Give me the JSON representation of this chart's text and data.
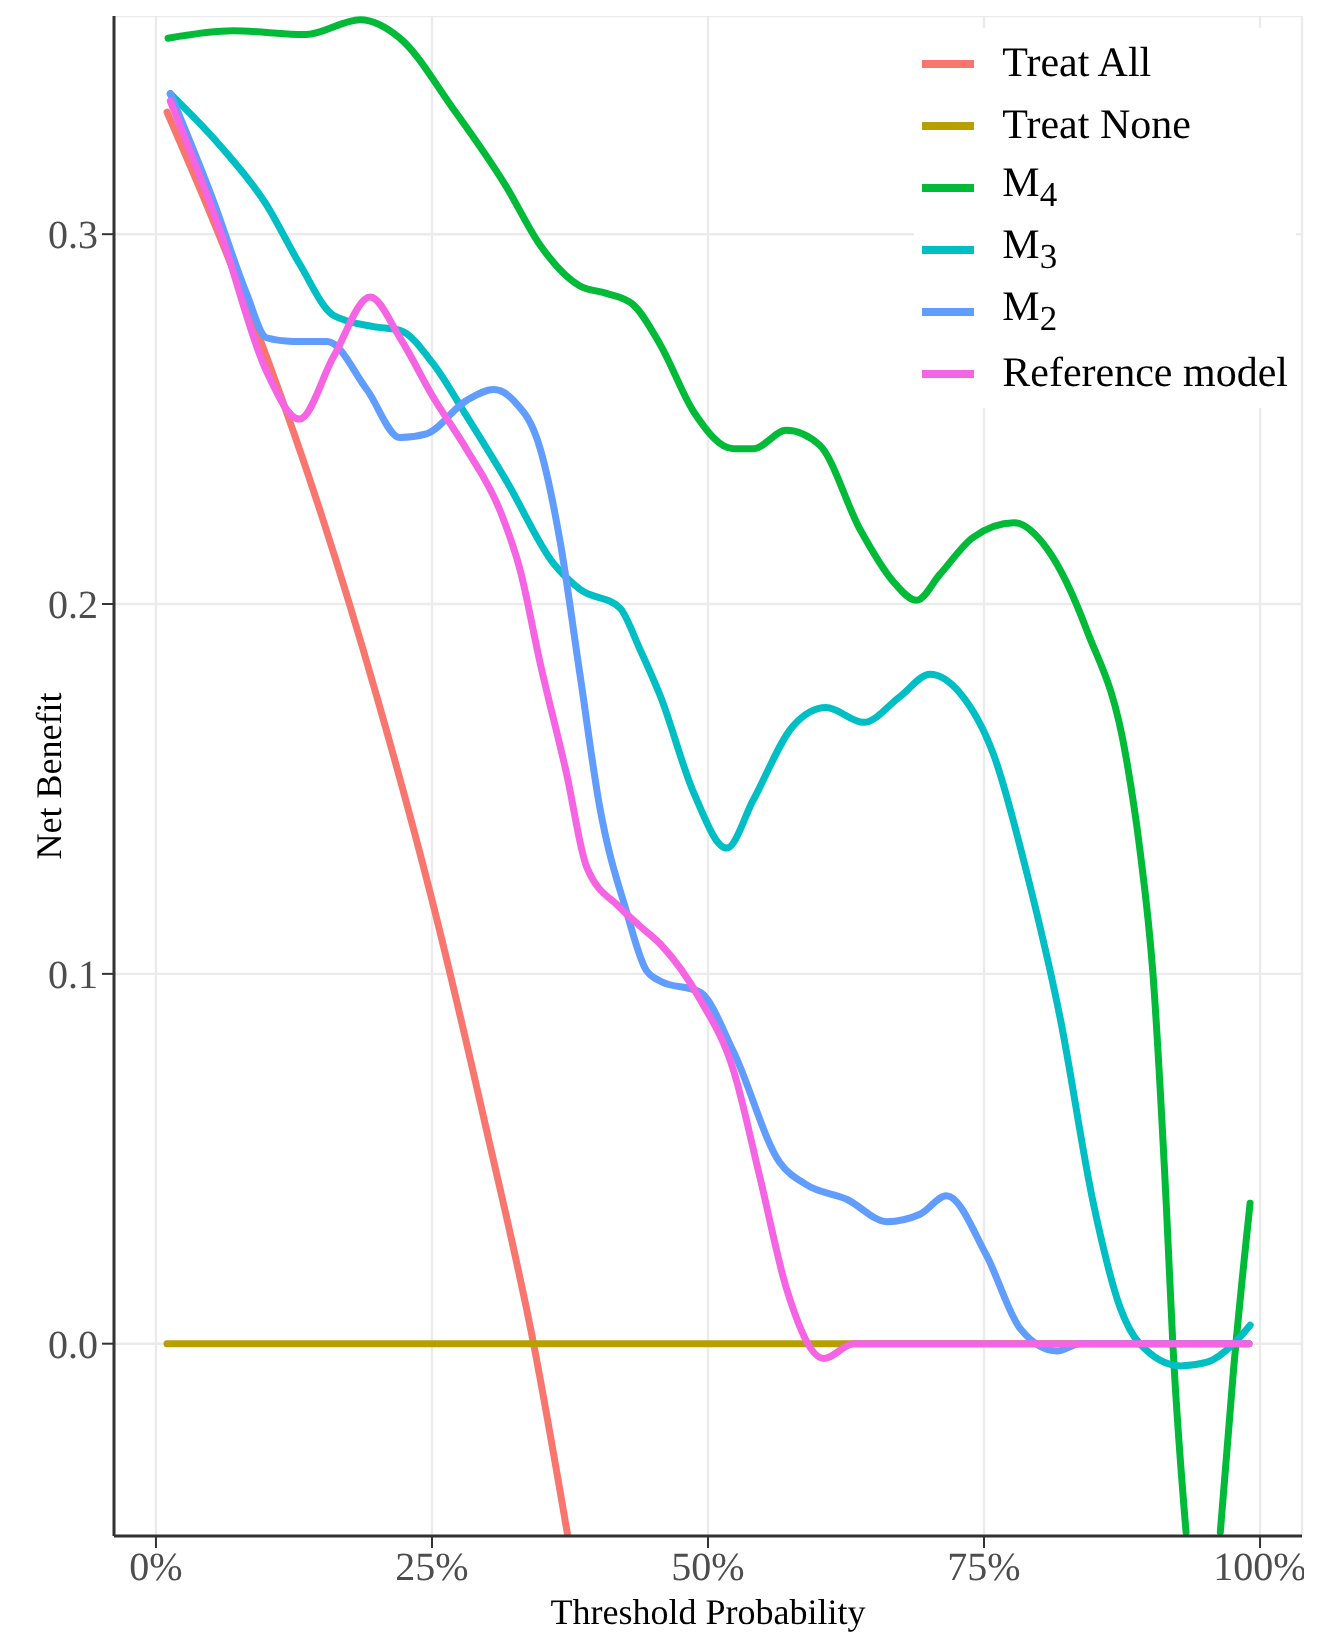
{
  "chart_data": {
    "type": "line",
    "xlabel": "Threshold Probability",
    "ylabel": "Net Benefit",
    "xlim": [
      -0.038,
      1.038
    ],
    "ylim": [
      -0.052,
      0.359
    ],
    "xticks": [
      {
        "value": 0,
        "label": "0%"
      },
      {
        "value": 0.25,
        "label": "25%"
      },
      {
        "value": 0.5,
        "label": "50%"
      },
      {
        "value": 0.75,
        "label": "75%"
      },
      {
        "value": 1,
        "label": "100%"
      }
    ],
    "yticks": [
      {
        "value": 0,
        "label": "0.0"
      },
      0.1,
      0.2,
      0.3
    ],
    "grid": true,
    "legend": "top right",
    "marker": "none",
    "line_style": "solid",
    "series": [
      {
        "name": "Treat All",
        "color": "#f8766d",
        "x": [
          0.01,
          0.05,
          0.1,
          0.15,
          0.2,
          0.25,
          0.3,
          0.342,
          0.373
        ],
        "values": [
          0.333,
          0.305,
          0.267,
          0.224,
          0.175,
          0.12,
          0.057,
          0.0,
          -0.052
        ]
      },
      {
        "name": "Treat None",
        "color": "#b79f00",
        "x": [
          0.01,
          0.99
        ],
        "values": [
          0,
          0
        ]
      },
      {
        "name": "M$_{4}$",
        "color": "#00ba38",
        "x": [
          0.011,
          0.07,
          0.136,
          0.185,
          0.221,
          0.269,
          0.317,
          0.348,
          0.384,
          0.408,
          0.432,
          0.457,
          0.487,
          0.523,
          0.541,
          0.571,
          0.601,
          0.638,
          0.668,
          0.689,
          0.71,
          0.74,
          0.777,
          0.807,
          0.843,
          0.879,
          0.891,
          0.903,
          0.915,
          0.921,
          0.933,
          0.948,
          0.964,
          0.976,
          0.991
        ],
        "values": [
          0.353,
          0.355,
          0.354,
          0.358,
          0.353,
          0.334,
          0.313,
          0.297,
          0.286,
          0.284,
          0.281,
          0.27,
          0.252,
          0.242,
          0.242,
          0.247,
          0.243,
          0.22,
          0.206,
          0.201,
          0.208,
          0.218,
          0.222,
          0.215,
          0.193,
          0.158,
          0.134,
          0.1,
          0.038,
          0.0,
          -0.051,
          null,
          -0.051,
          -0.007,
          0.038
        ]
      },
      {
        "name": "M$_{3}$",
        "color": "#00bfc4",
        "x": [
          0.013,
          0.058,
          0.1,
          0.13,
          0.161,
          0.197,
          0.221,
          0.251,
          0.281,
          0.318,
          0.36,
          0.384,
          0.42,
          0.438,
          0.457,
          0.487,
          0.517,
          0.541,
          0.577,
          0.607,
          0.641,
          0.674,
          0.701,
          0.728,
          0.759,
          0.789,
          0.819,
          0.849,
          0.873,
          0.891,
          0.928,
          0.952,
          0.976,
          0.991
        ],
        "values": [
          0.338,
          0.324,
          0.308,
          0.292,
          0.278,
          0.275,
          0.274,
          0.265,
          0.251,
          0.233,
          0.211,
          0.204,
          0.199,
          0.188,
          0.175,
          0.149,
          0.134,
          0.147,
          0.167,
          0.172,
          0.168,
          0.175,
          0.181,
          0.176,
          0.159,
          0.127,
          0.088,
          0.038,
          0.01,
          0.0,
          -0.006,
          -0.005,
          0.0,
          0.005
        ]
      },
      {
        "name": "M$_{2}$",
        "color": "#619cff",
        "x": [
          0.013,
          0.052,
          0.082,
          0.1,
          0.124,
          0.155,
          0.191,
          0.221,
          0.245,
          0.281,
          0.306,
          0.324,
          0.348,
          0.366,
          0.384,
          0.402,
          0.426,
          0.444,
          0.457,
          0.493,
          0.523,
          0.565,
          0.589,
          0.626,
          0.662,
          0.692,
          0.716,
          0.752,
          0.783,
          0.816,
          0.837,
          0.99
        ],
        "values": [
          0.338,
          0.309,
          0.284,
          0.272,
          0.271,
          0.271,
          0.258,
          0.245,
          0.246,
          0.255,
          0.258,
          0.255,
          0.242,
          0.217,
          0.181,
          0.145,
          0.117,
          0.101,
          0.098,
          0.095,
          0.079,
          0.049,
          0.043,
          0.039,
          0.033,
          0.035,
          0.04,
          0.024,
          0.004,
          -0.002,
          0.0,
          0.0
        ]
      },
      {
        "name": "Reference model",
        "color": "#f564e3",
        "x": [
          0.013,
          0.058,
          0.1,
          0.13,
          0.161,
          0.194,
          0.221,
          0.251,
          0.281,
          0.312,
          0.33,
          0.348,
          0.372,
          0.39,
          0.42,
          0.438,
          0.457,
          0.493,
          0.523,
          0.547,
          0.571,
          0.605,
          0.632,
          0.99
        ],
        "values": [
          0.336,
          0.301,
          0.263,
          0.25,
          0.267,
          0.283,
          0.272,
          0.256,
          0.242,
          0.225,
          0.209,
          0.184,
          0.154,
          0.129,
          0.118,
          0.113,
          0.108,
          0.093,
          0.074,
          0.045,
          0.015,
          -0.004,
          0.0,
          0.0
        ]
      }
    ]
  }
}
